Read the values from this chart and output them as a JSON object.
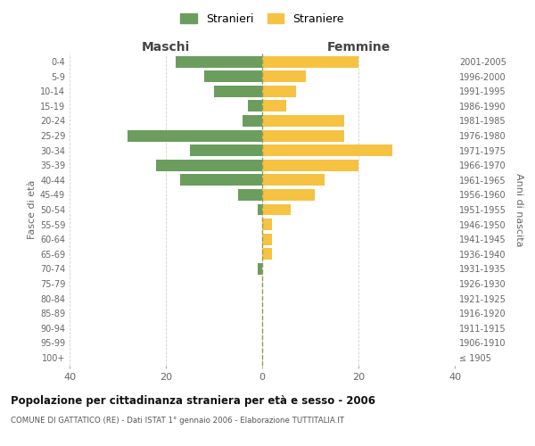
{
  "age_groups": [
    "100+",
    "95-99",
    "90-94",
    "85-89",
    "80-84",
    "75-79",
    "70-74",
    "65-69",
    "60-64",
    "55-59",
    "50-54",
    "45-49",
    "40-44",
    "35-39",
    "30-34",
    "25-29",
    "20-24",
    "15-19",
    "10-14",
    "5-9",
    "0-4"
  ],
  "birth_years": [
    "≤ 1905",
    "1906-1910",
    "1911-1915",
    "1916-1920",
    "1921-1925",
    "1926-1930",
    "1931-1935",
    "1936-1940",
    "1941-1945",
    "1946-1950",
    "1951-1955",
    "1956-1960",
    "1961-1965",
    "1966-1970",
    "1971-1975",
    "1976-1980",
    "1981-1985",
    "1986-1990",
    "1991-1995",
    "1996-2000",
    "2001-2005"
  ],
  "maschi": [
    0,
    0,
    0,
    0,
    0,
    0,
    1,
    0,
    0,
    0,
    1,
    5,
    17,
    22,
    15,
    28,
    4,
    3,
    10,
    12,
    18
  ],
  "femmine": [
    0,
    0,
    0,
    0,
    0,
    0,
    0,
    2,
    2,
    2,
    6,
    11,
    13,
    20,
    27,
    17,
    17,
    5,
    7,
    9,
    20
  ],
  "color_maschi": "#6b9e5e",
  "color_femmine": "#f5c242",
  "title": "Popolazione per cittadinanza straniera per età e sesso - 2006",
  "subtitle": "COMUNE DI GATTATICO (RE) - Dati ISTAT 1° gennaio 2006 - Elaborazione TUTTITALIA.IT",
  "xlabel_maschi": "Maschi",
  "xlabel_femmine": "Femmine",
  "ylabel_left": "Fasce di età",
  "ylabel_right": "Anni di nascita",
  "legend_maschi": "Stranieri",
  "legend_femmine": "Straniere",
  "xlim": 40,
  "background_color": "#ffffff",
  "grid_color": "#cccccc",
  "dashed_color": "#999955"
}
